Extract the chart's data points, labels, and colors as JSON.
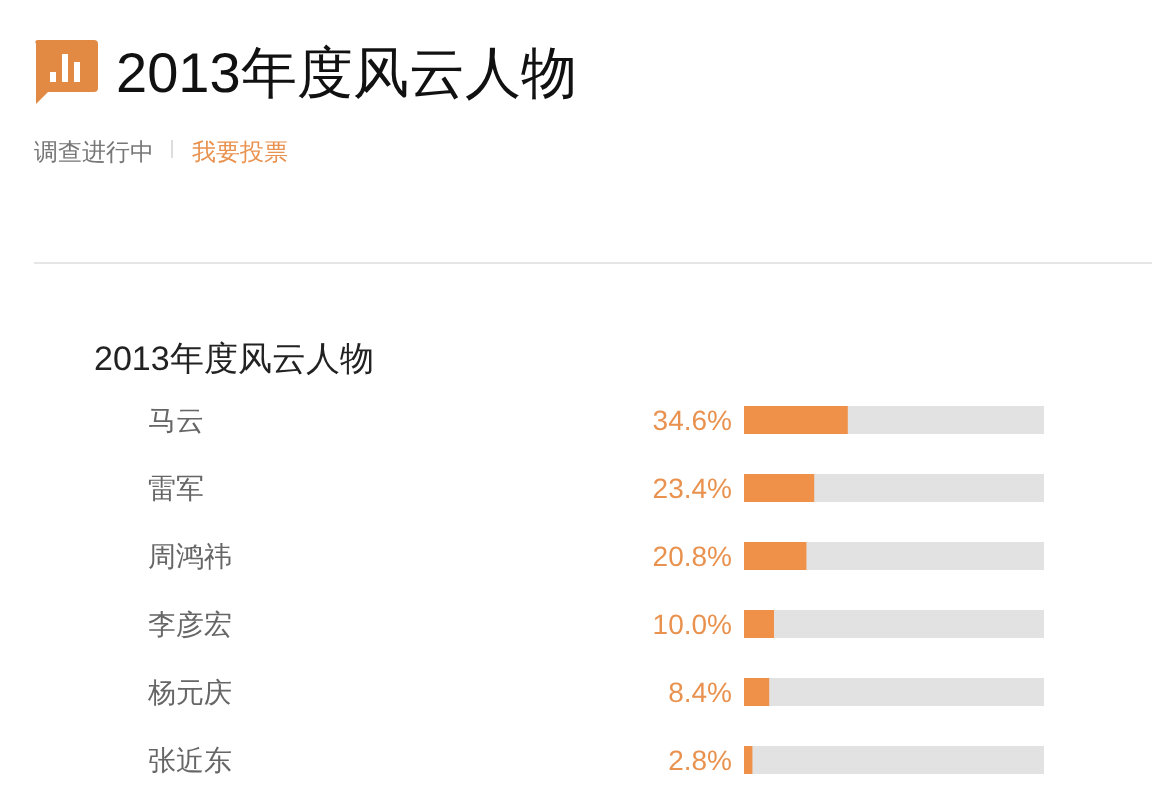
{
  "chart_data": {
    "type": "bar",
    "orientation": "horizontal",
    "title": "2013年度风云人物",
    "subtitle": "2013年度风云人物",
    "annotations": [
      "调查进行中",
      "我要投票"
    ],
    "categories": [
      "马云",
      "雷军",
      "周鸿祎",
      "李彦宏",
      "杨元庆",
      "张近东"
    ],
    "values": [
      34.6,
      23.4,
      20.8,
      10.0,
      8.4,
      2.8
    ],
    "value_labels": [
      "34.6%",
      "23.4%",
      "20.8%",
      "10.0%",
      "8.4%",
      "2.8%"
    ],
    "color": "#f0914a",
    "xlim": [
      0,
      100
    ],
    "tick_labels": "y"
  }
}
